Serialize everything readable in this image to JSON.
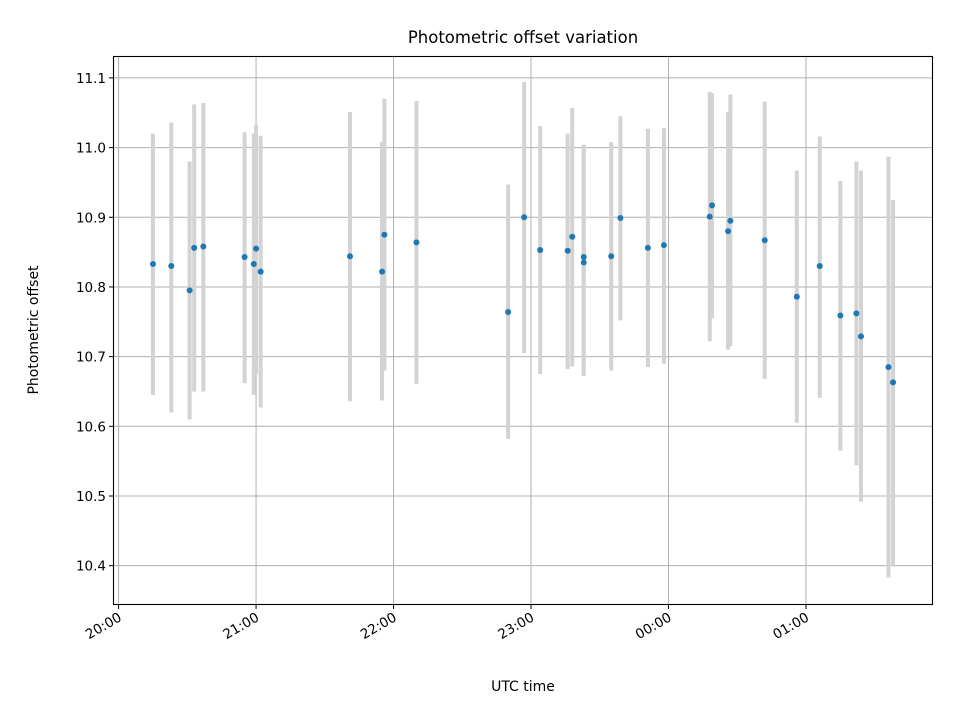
{
  "chart_data": {
    "type": "scatter",
    "title": "Photometric offset variation",
    "xlabel": "UTC time",
    "ylabel": "Photometric offset",
    "x_ticks": [
      {
        "value": "20:00",
        "label": "20:00"
      },
      {
        "value": "21:00",
        "label": "21:00"
      },
      {
        "value": "22:00",
        "label": "22:00"
      },
      {
        "value": "23:00",
        "label": "23:00"
      },
      {
        "value": "24:00",
        "label": "00:00"
      },
      {
        "value": "25:00",
        "label": "01:00"
      }
    ],
    "y_ticks": [
      "10.4",
      "10.5",
      "10.6",
      "10.7",
      "10.8",
      "10.9",
      "11.0",
      "11.1"
    ],
    "xlim": [
      "19:58",
      "25:55"
    ],
    "ylim": [
      10.345,
      11.13
    ],
    "grid": true,
    "marker_color": "#1f77b4",
    "errorbar_color": "#d3d3d3",
    "points": [
      {
        "x": "20:15",
        "y": 10.833,
        "low": 10.645,
        "high": 11.02
      },
      {
        "x": "20:23",
        "y": 10.83,
        "low": 10.62,
        "high": 11.036
      },
      {
        "x": "20:31",
        "y": 10.795,
        "low": 10.61,
        "high": 10.98
      },
      {
        "x": "20:33",
        "y": 10.856,
        "low": 10.65,
        "high": 11.062
      },
      {
        "x": "20:37",
        "y": 10.858,
        "low": 10.65,
        "high": 11.064
      },
      {
        "x": "20:55",
        "y": 10.843,
        "low": 10.662,
        "high": 11.022
      },
      {
        "x": "20:59",
        "y": 10.833,
        "low": 10.645,
        "high": 11.02
      },
      {
        "x": "21:00",
        "y": 10.855,
        "low": 10.675,
        "high": 11.032
      },
      {
        "x": "21:02",
        "y": 10.822,
        "low": 10.627,
        "high": 11.017
      },
      {
        "x": "21:41",
        "y": 10.844,
        "low": 10.636,
        "high": 11.051
      },
      {
        "x": "21:55",
        "y": 10.822,
        "low": 10.637,
        "high": 11.008
      },
      {
        "x": "21:56",
        "y": 10.875,
        "low": 10.68,
        "high": 11.07
      },
      {
        "x": "22:10",
        "y": 10.864,
        "low": 10.661,
        "high": 11.067
      },
      {
        "x": "22:50",
        "y": 10.764,
        "low": 10.582,
        "high": 10.947
      },
      {
        "x": "22:57",
        "y": 10.9,
        "low": 10.705,
        "high": 11.094
      },
      {
        "x": "23:04",
        "y": 10.853,
        "low": 10.675,
        "high": 11.031
      },
      {
        "x": "23:16",
        "y": 10.852,
        "low": 10.682,
        "high": 11.02
      },
      {
        "x": "23:18",
        "y": 10.872,
        "low": 10.686,
        "high": 11.057
      },
      {
        "x": "23:23",
        "y": 10.843,
        "low": 10.68,
        "high": 11.004
      },
      {
        "x": "23:23",
        "y": 10.835,
        "low": 10.672,
        "high": 11.0
      },
      {
        "x": "23:35",
        "y": 10.844,
        "low": 10.68,
        "high": 11.008
      },
      {
        "x": "23:39",
        "y": 10.899,
        "low": 10.752,
        "high": 11.045
      },
      {
        "x": "23:51",
        "y": 10.856,
        "low": 10.685,
        "high": 11.027
      },
      {
        "x": "23:58",
        "y": 10.86,
        "low": 10.69,
        "high": 11.028
      },
      {
        "x": "24:18",
        "y": 10.901,
        "low": 10.722,
        "high": 11.08
      },
      {
        "x": "24:19",
        "y": 10.917,
        "low": 10.755,
        "high": 11.078
      },
      {
        "x": "24:26",
        "y": 10.88,
        "low": 10.71,
        "high": 11.051
      },
      {
        "x": "24:27",
        "y": 10.895,
        "low": 10.715,
        "high": 11.076
      },
      {
        "x": "24:42",
        "y": 10.867,
        "low": 10.668,
        "high": 11.066
      },
      {
        "x": "24:56",
        "y": 10.786,
        "low": 10.605,
        "high": 10.967
      },
      {
        "x": "25:06",
        "y": 10.83,
        "low": 10.641,
        "high": 11.016
      },
      {
        "x": "25:15",
        "y": 10.759,
        "low": 10.565,
        "high": 10.952
      },
      {
        "x": "25:22",
        "y": 10.762,
        "low": 10.544,
        "high": 10.98
      },
      {
        "x": "25:24",
        "y": 10.729,
        "low": 10.492,
        "high": 10.967
      },
      {
        "x": "25:36",
        "y": 10.685,
        "low": 10.383,
        "high": 10.987
      },
      {
        "x": "25:38",
        "y": 10.663,
        "low": 10.4,
        "high": 10.925
      }
    ]
  }
}
